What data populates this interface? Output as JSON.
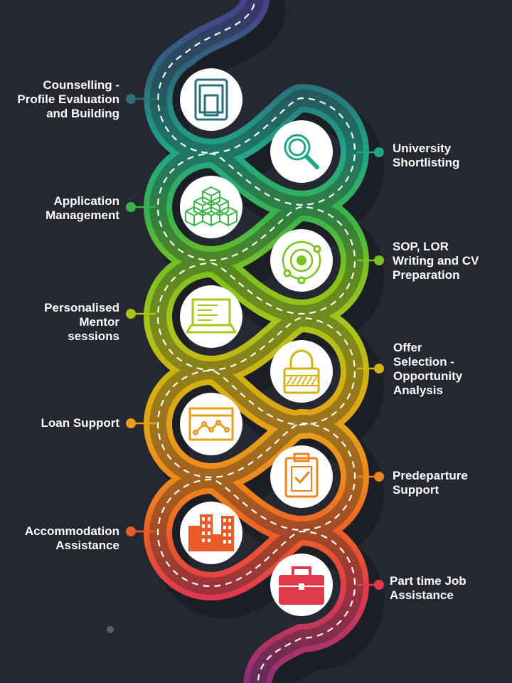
{
  "steps": [
    {
      "label_lines": [
        "Counselling -",
        "Profile Evaluation",
        "and Building"
      ],
      "color": "#2a6f7a",
      "icon": "tablet-icon"
    },
    {
      "label_lines": [
        "University",
        "Shortlisting"
      ],
      "color": "#1fa68a",
      "icon": "magnifier-icon"
    },
    {
      "label_lines": [
        "Application",
        "Management"
      ],
      "color": "#3cb44a",
      "icon": "cubes-icon"
    },
    {
      "label_lines": [
        "SOP, LOR",
        "Writing and CV",
        "Preparation"
      ],
      "color": "#7cc21e",
      "icon": "orbit-icon"
    },
    {
      "label_lines": [
        "Personalised",
        "Mentor",
        "sessions"
      ],
      "color": "#a9c51a",
      "icon": "laptop-icon"
    },
    {
      "label_lines": [
        "Offer",
        "Selection -",
        "Opportunity",
        "Analysis"
      ],
      "color": "#d4b10f",
      "icon": "lock-icon"
    },
    {
      "label_lines": [
        "Loan Support"
      ],
      "color": "#e6a019",
      "icon": "growth-chart-icon"
    },
    {
      "label_lines": [
        "Predeparture",
        "Support"
      ],
      "color": "#f0841c",
      "icon": "clipboard-check-icon"
    },
    {
      "label_lines": [
        "Accommodation",
        "Assistance"
      ],
      "color": "#ec5a2a",
      "icon": "buildings-icon"
    },
    {
      "label_lines": [
        "Part time Job",
        "Assistance"
      ],
      "color": "#e03a4c",
      "icon": "briefcase-icon"
    }
  ],
  "colors": {
    "background": "#252830",
    "road_top": "#4a3f8e",
    "road_bottom": "#8a2f7a",
    "icon_circle": "#ffffff",
    "road_dash": "#ffffff",
    "small_dot": "#5a5e6a"
  }
}
